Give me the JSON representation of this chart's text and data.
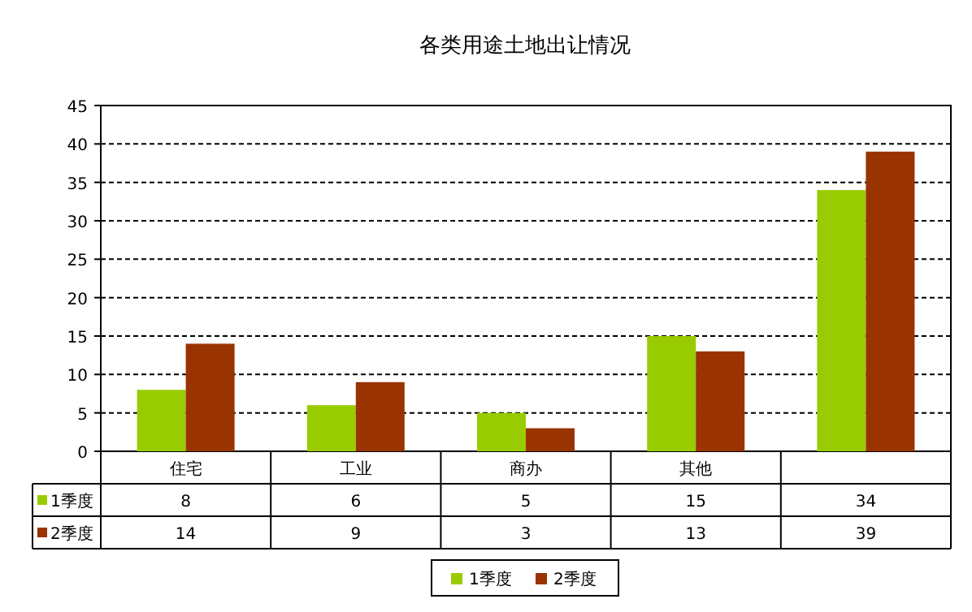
{
  "chart_data": {
    "type": "bar",
    "title": "各类用途土地出让情况",
    "categories": [
      "住宅",
      "工业",
      "商办",
      "其他",
      null
    ],
    "series": [
      {
        "name": "1季度",
        "color": "#99cc00",
        "values": [
          8,
          6,
          5,
          15,
          34
        ]
      },
      {
        "name": "2季度",
        "color": "#993300",
        "values": [
          14,
          9,
          3,
          13,
          39
        ]
      }
    ],
    "ylim": [
      0,
      45
    ],
    "yticks": [
      0,
      5,
      10,
      15,
      20,
      25,
      30,
      35,
      40,
      45
    ],
    "grid": "y",
    "legend": "bottom",
    "data_labels": true
  }
}
